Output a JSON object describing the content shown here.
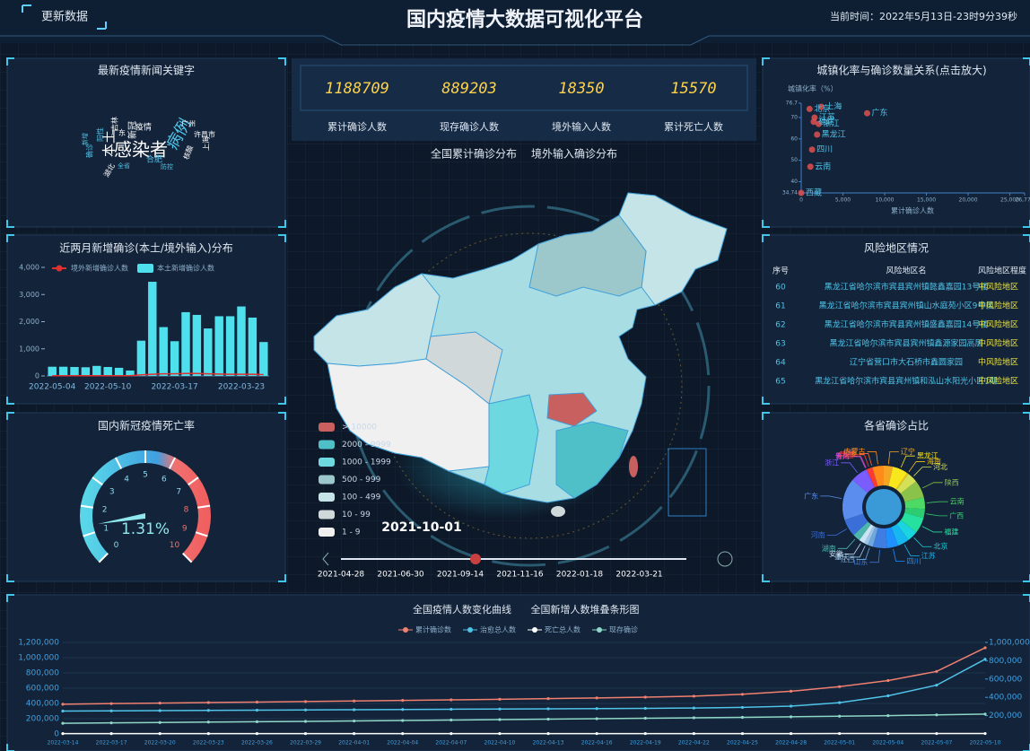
{
  "header": {
    "button": "更新数据",
    "title": "国内疫情大数据可视化平台",
    "time": "当前时间：2022年5月13日-23时9分39秒"
  },
  "stats": [
    {
      "value": "1188709",
      "label": "累计确诊人数"
    },
    {
      "value": "889203",
      "label": "现存确诊人数"
    },
    {
      "value": "18350",
      "label": "境外输入人数"
    },
    {
      "value": "15570",
      "label": "累计死亡人数"
    }
  ],
  "risk_table": {
    "title": "风险地区情况",
    "columns": [
      "序号",
      "风险地区名",
      "风险地区程度"
    ],
    "rows": [
      [
        60,
        "黑龙江省哈尔滨市宾县宾州镇懿鑫嘉园13号楼",
        "中风险地区"
      ],
      [
        61,
        "黑龙江省哈尔滨市宾县宾州镇山水庭苑小区9号楼",
        "中风险地区"
      ],
      [
        62,
        "黑龙江省哈尔滨市宾县宾州镇盛鑫嘉园14号楼",
        "中风险地区"
      ],
      [
        63,
        "黑龙江省哈尔滨市宾县宾州镇鑫源家园高层",
        "中风险地区"
      ],
      [
        64,
        "辽宁省营口市大石桥市鑫圆家园",
        "中风险地区"
      ],
      [
        65,
        "黑龙江省哈尔滨市宾县宾州镇和泓山水阳光小区1期",
        "中风险地区"
      ]
    ]
  },
  "chart_data": [
    {
      "type": "wordcloud",
      "title": "最新疫情新闻关键字",
      "words": [
        "感染者",
        "病例",
        "本土",
        "广州",
        "许昌市",
        "合肥",
        "新冠",
        "全省",
        "阳性",
        "确诊",
        "上海",
        "吉林",
        "广东",
        "核酸",
        "疫情",
        "新增",
        "湖北",
        "防控"
      ]
    },
    {
      "type": "bar",
      "title": "近两月新增确诊(本土/境外输入)分布",
      "categories": [
        "2022-05-04",
        null,
        null,
        null,
        null,
        "2022-05-10",
        null,
        null,
        null,
        null,
        null,
        "2022-03-17",
        null,
        null,
        null,
        null,
        null,
        "2022-03-23",
        null,
        null
      ],
      "series": [
        {
          "name": "境外新增确诊人数",
          "type": "line",
          "color": "#e03030",
          "values": [
            10,
            10,
            10,
            10,
            10,
            10,
            10,
            10,
            40,
            60,
            80,
            80,
            90,
            90,
            80,
            70,
            60,
            60,
            60,
            50
          ]
        },
        {
          "name": "本土新增确诊人数",
          "type": "bar",
          "color": "#4fe0ee",
          "values": [
            340,
            340,
            330,
            320,
            370,
            330,
            300,
            200,
            1300,
            3470,
            1800,
            1280,
            2350,
            2250,
            1750,
            2200,
            2200,
            2560,
            2150,
            1250
          ]
        }
      ],
      "ylim": [
        0,
        4000
      ],
      "yticks": [
        0,
        {
          "value": 1000,
          "label": "1,000"
        },
        {
          "value": 2000,
          "label": "2,000"
        },
        {
          "value": 3000,
          "label": "3,000"
        },
        {
          "value": 4000,
          "label": "4,000"
        }
      ]
    },
    {
      "type": "gauge",
      "title": "国内新冠疫情死亡率",
      "value": 1.31,
      "value_label": "1.31%",
      "ylim": [
        0,
        10
      ],
      "yticks": [
        0,
        1,
        2,
        3,
        4,
        5,
        6,
        7,
        8,
        9,
        10
      ]
    },
    {
      "type": "map",
      "tabs": [
        "全国累计确诊分布",
        "境外输入确诊分布"
      ],
      "legend": {
        "labels": [
          "> 10000",
          "2000 - 9999",
          "1000 - 1999",
          "500 - 999",
          "100 - 499",
          "10 - 99",
          "1 - 9"
        ],
        "colors": [
          "#c96060",
          "#4fbfc8",
          "#6dd8e0",
          "#9cc8cc",
          "#c4e4e8",
          "#d0d8da",
          "#f0f0f0"
        ]
      },
      "date": "2021-10-01",
      "timeline": [
        "2021-04-28",
        "2021-06-30",
        "2021-09-14",
        "2021-11-16",
        "2022-01-18",
        "2022-03-21"
      ]
    },
    {
      "type": "scatter",
      "title": "城镇化率与确诊数量关系(点击放大)",
      "ylabel": "城镇化率（%）",
      "xlabel": "累计确诊人数",
      "color": "#e05050",
      "labels": [
        "广东",
        "西藏",
        "江苏",
        "浙江",
        "黑龙江",
        "上海",
        "云南",
        "四川",
        "福建",
        "北京"
      ],
      "x": [
        7900,
        0,
        1600,
        2100,
        1900,
        2400,
        1100,
        1300,
        1500,
        1000
      ],
      "values": [
        72,
        34.74,
        70,
        67,
        62,
        75,
        47,
        55,
        68,
        74
      ],
      "xlim": [
        0,
        26771
      ],
      "xticks": [
        0,
        {
          "value": 5000,
          "label": "5,000"
        },
        {
          "value": 10000,
          "label": "10,000"
        },
        {
          "value": 15000,
          "label": "15,000"
        },
        {
          "value": 20000,
          "label": "20,000"
        },
        {
          "value": 25000,
          "label": "25,000"
        },
        {
          "value": 26771,
          "label": "26,771"
        }
      ],
      "ylim": [
        34.74,
        76.7
      ],
      "yticks": [
        34.74,
        40,
        50,
        60,
        70,
        76.7
      ]
    },
    {
      "type": "pie",
      "title": "各省确诊占比",
      "categories": [
        "辽宁",
        "黑龙江",
        "海南",
        "河北",
        "陕西",
        "云南",
        "广西",
        "福建",
        "北京",
        "江苏",
        "四川",
        "山东",
        "江西",
        "重庆",
        "安徽",
        "湖南",
        "河南",
        "广东",
        "浙江",
        "贵州",
        "青海",
        "新疆",
        "宁夏",
        "内蒙古"
      ],
      "values": [
        1700,
        2900,
        290,
        2000,
        3300,
        2200,
        1700,
        3000,
        2000,
        2200,
        2100,
        2700,
        1000,
        700,
        1100,
        1400,
        3300,
        7900,
        3100,
        180,
        60,
        1000,
        120,
        2100
      ],
      "colors": [
        "#f5a623",
        "#f8e71c",
        "#f0c419",
        "#d4e157",
        "#8bc34a",
        "#4cd964",
        "#2ecc71",
        "#26e0a0",
        "#1ad5e0",
        "#17b8f0",
        "#1e90ff",
        "#3f7de0",
        "#6fa8dc",
        "#9fc5e8",
        "#c9e3f5",
        "#4db6ac",
        "#3a6fd8",
        "#5b8def",
        "#7a5cff",
        "#b04fe0",
        "#e040a0",
        "#ff3b30",
        "#ff6a3d",
        "#ff8c1a"
      ]
    },
    {
      "type": "line",
      "title": "全国疫情人数变化曲线",
      "subtitle": "全国新增人数堆叠条形图",
      "categories": [
        "2022-03-14",
        "2022-03-17",
        "2022-03-20",
        "2022-03-23",
        "2022-03-26",
        "2022-03-29",
        "2022-04-01",
        "2022-04-04",
        "2022-04-07",
        "2022-04-10",
        "2022-04-13",
        "2022-04-16",
        "2022-04-19",
        "2022-04-22",
        "2022-04-25",
        "2022-04-28",
        "2022-05-01",
        "2022-05-04",
        "2022-05-07",
        "2022-05-10"
      ],
      "series": [
        {
          "name": "累计确诊数",
          "color": "#f08070",
          "values": [
            390000,
            398000,
            405000,
            412000,
            418000,
            425000,
            432000,
            440000,
            447000,
            455000,
            463000,
            472000,
            482000,
            495000,
            520000,
            560000,
            620000,
            700000,
            820000,
            1130000
          ]
        },
        {
          "name": "治愈总人数",
          "color": "#4fc3e8",
          "values": [
            300000,
            303000,
            306000,
            309000,
            312000,
            315000,
            318000,
            321000,
            324000,
            327000,
            330000,
            333000,
            336000,
            340000,
            348000,
            365000,
            410000,
            500000,
            640000,
            980000
          ]
        },
        {
          "name": "死亡总人数",
          "color": "#ffffff",
          "values": [
            4600,
            4600,
            4600,
            4700,
            4700,
            4700,
            4800,
            4800,
            4800,
            4900,
            4900,
            5000,
            5000,
            5000,
            5100,
            5100,
            5200,
            5200,
            5200,
            5200
          ]
        },
        {
          "name": "现存确诊",
          "color": "#8fd8c8",
          "values": [
            140000,
            145000,
            150000,
            156000,
            160000,
            165000,
            170000,
            176000,
            182000,
            188000,
            194000,
            200000,
            206000,
            212000,
            218000,
            225000,
            232000,
            240000,
            250000,
            260000
          ]
        }
      ],
      "ylim": [
        0,
        1200000
      ],
      "yticks": [
        0,
        {
          "value": 200000,
          "label": "200,000"
        },
        {
          "value": 400000,
          "label": "400,000"
        },
        {
          "value": 600000,
          "label": "600,000"
        },
        {
          "value": 800000,
          "label": "800,000"
        },
        {
          "value": 1000000,
          "label": "1,000,000"
        },
        {
          "value": 1200000,
          "label": "1,200,000"
        }
      ],
      "y2lim": [
        0,
        1000000
      ],
      "y2ticks": [
        {
          "value": 200000,
          "label": "200,000"
        },
        {
          "value": 400000,
          "label": "400,000"
        },
        {
          "value": 600000,
          "label": "600,000"
        },
        {
          "value": 800000,
          "label": "800,000"
        },
        {
          "value": 1000000,
          "label": "1,000,000"
        }
      ]
    }
  ]
}
